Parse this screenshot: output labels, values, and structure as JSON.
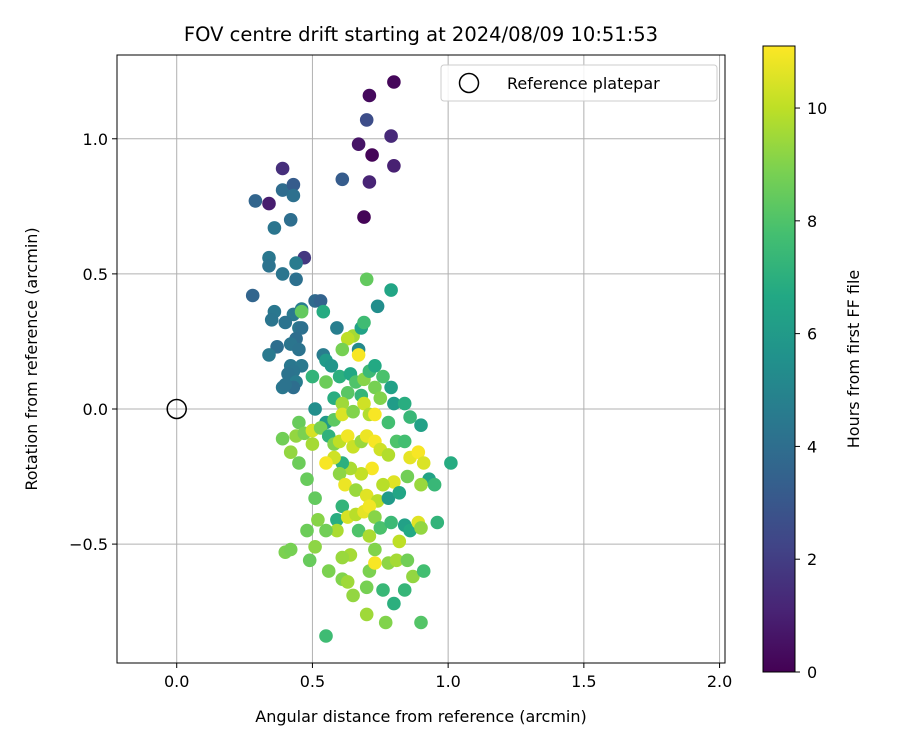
{
  "chart_data": {
    "type": "scatter",
    "title": "FOV centre drift starting at 2024/08/09 10:51:53",
    "xlabel": "Angular distance from reference (arcmin)",
    "ylabel": "Rotation from reference (arcmin)",
    "xlim": [
      -0.22,
      2.02
    ],
    "ylim": [
      -0.94,
      1.31
    ],
    "xticks": [
      0.0,
      0.5,
      1.0,
      1.5,
      2.0
    ],
    "xtick_labels": [
      "0.0",
      "0.5",
      "1.0",
      "1.5",
      "2.0"
    ],
    "yticks": [
      -0.5,
      0.0,
      0.5,
      1.0
    ],
    "ytick_labels": [
      "−0.5",
      "0.0",
      "0.5",
      "1.0"
    ],
    "grid": true,
    "legend": {
      "position": "top-right",
      "entries": [
        {
          "label": "Reference platepar",
          "marker": "open-circle"
        }
      ]
    },
    "reference_point": {
      "x": 0.0,
      "y": 0.0
    },
    "colorbar": {
      "label": "Hours from first FF file",
      "colormap": "viridis",
      "range": [
        0,
        11.1
      ],
      "ticks": [
        0,
        2,
        4,
        6,
        8,
        10
      ],
      "tick_labels": [
        "0",
        "2",
        "4",
        "6",
        "8",
        "10"
      ]
    },
    "point_columns": [
      "x",
      "y",
      "hours"
    ],
    "points": [
      [
        0.8,
        1.21,
        0.2
      ],
      [
        0.71,
        1.16,
        0.3
      ],
      [
        0.7,
        1.07,
        2.6
      ],
      [
        0.79,
        1.01,
        1.3
      ],
      [
        0.67,
        0.98,
        0.6
      ],
      [
        0.72,
        0.94,
        0.1
      ],
      [
        0.8,
        0.9,
        1.0
      ],
      [
        0.71,
        0.84,
        1.1
      ],
      [
        0.69,
        0.71,
        0.1
      ],
      [
        0.39,
        0.89,
        1.5
      ],
      [
        0.34,
        0.76,
        0.9
      ],
      [
        0.29,
        0.77,
        3.6
      ],
      [
        0.39,
        0.81,
        3.9
      ],
      [
        0.43,
        0.83,
        3.2
      ],
      [
        0.43,
        0.79,
        4.1
      ],
      [
        0.42,
        0.7,
        4.0
      ],
      [
        0.61,
        0.85,
        3.2
      ],
      [
        0.36,
        0.67,
        4.3
      ],
      [
        0.47,
        0.56,
        1.8
      ],
      [
        0.34,
        0.56,
        4.4
      ],
      [
        0.34,
        0.53,
        4.2
      ],
      [
        0.39,
        0.5,
        4.3
      ],
      [
        0.44,
        0.54,
        4.6
      ],
      [
        0.44,
        0.48,
        4.1
      ],
      [
        0.28,
        0.42,
        3.6
      ],
      [
        0.51,
        0.4,
        3.8
      ],
      [
        0.53,
        0.4,
        3.5
      ],
      [
        0.46,
        0.37,
        4.7
      ],
      [
        0.36,
        0.36,
        4.4
      ],
      [
        0.35,
        0.33,
        4.3
      ],
      [
        0.43,
        0.35,
        4.5
      ],
      [
        0.4,
        0.32,
        4.2
      ],
      [
        0.45,
        0.3,
        4.4
      ],
      [
        0.46,
        0.3,
        4.1
      ],
      [
        0.44,
        0.26,
        4.0
      ],
      [
        0.42,
        0.24,
        4.3
      ],
      [
        0.37,
        0.23,
        4.0
      ],
      [
        0.45,
        0.22,
        4.2
      ],
      [
        0.34,
        0.2,
        4.5
      ],
      [
        0.42,
        0.16,
        4.4
      ],
      [
        0.46,
        0.16,
        4.5
      ],
      [
        0.43,
        0.14,
        4.3
      ],
      [
        0.41,
        0.13,
        4.2
      ],
      [
        0.44,
        0.1,
        4.6
      ],
      [
        0.43,
        0.08,
        4.0
      ],
      [
        0.39,
        0.08,
        4.4
      ],
      [
        0.4,
        0.09,
        4.2
      ],
      [
        0.54,
        0.2,
        4.6
      ],
      [
        0.59,
        0.3,
        4.7
      ],
      [
        0.54,
        0.36,
        6.8
      ],
      [
        0.46,
        0.36,
        8.4
      ],
      [
        0.65,
        0.27,
        9.6
      ],
      [
        0.68,
        0.3,
        6.4
      ],
      [
        0.69,
        0.32,
        7.6
      ],
      [
        0.74,
        0.38,
        5.4
      ],
      [
        0.79,
        0.44,
        6.5
      ],
      [
        0.7,
        0.48,
        8.4
      ],
      [
        0.67,
        0.22,
        5.2
      ],
      [
        0.63,
        0.26,
        10.0
      ],
      [
        0.61,
        0.22,
        8.8
      ],
      [
        0.67,
        0.2,
        11.0
      ],
      [
        0.55,
        0.18,
        6.0
      ],
      [
        0.57,
        0.16,
        5.8
      ],
      [
        0.5,
        0.12,
        7.2
      ],
      [
        0.55,
        0.1,
        8.6
      ],
      [
        0.6,
        0.12,
        7.0
      ],
      [
        0.64,
        0.13,
        6.6
      ],
      [
        0.66,
        0.1,
        8.0
      ],
      [
        0.69,
        0.11,
        9.1
      ],
      [
        0.71,
        0.14,
        7.5
      ],
      [
        0.73,
        0.16,
        6.7
      ],
      [
        0.76,
        0.12,
        7.9
      ],
      [
        0.79,
        0.08,
        6.3
      ],
      [
        0.73,
        0.08,
        8.8
      ],
      [
        0.68,
        0.05,
        7.3
      ],
      [
        0.63,
        0.06,
        8.2
      ],
      [
        0.58,
        0.04,
        6.9
      ],
      [
        0.61,
        0.02,
        9.5
      ],
      [
        0.69,
        0.02,
        10.3
      ],
      [
        0.75,
        0.04,
        9.0
      ],
      [
        0.8,
        0.02,
        6.1
      ],
      [
        0.84,
        0.02,
        6.9
      ],
      [
        0.86,
        -0.03,
        7.4
      ],
      [
        0.9,
        -0.06,
        6.3
      ],
      [
        0.51,
        0.0,
        5.4
      ],
      [
        0.55,
        -0.05,
        6.0
      ],
      [
        0.58,
        -0.04,
        8.3
      ],
      [
        0.61,
        -0.02,
        10.5
      ],
      [
        0.65,
        -0.01,
        9.0
      ],
      [
        0.71,
        -0.02,
        9.8
      ],
      [
        0.73,
        -0.02,
        11.0
      ],
      [
        0.78,
        -0.05,
        7.7
      ],
      [
        0.45,
        -0.05,
        8.5
      ],
      [
        0.44,
        -0.1,
        9.3
      ],
      [
        0.47,
        -0.09,
        8.9
      ],
      [
        0.39,
        -0.11,
        8.7
      ],
      [
        0.42,
        -0.16,
        9.3
      ],
      [
        0.45,
        -0.2,
        8.6
      ],
      [
        0.5,
        -0.13,
        9.6
      ],
      [
        0.5,
        -0.08,
        10.4
      ],
      [
        0.53,
        -0.07,
        8.8
      ],
      [
        0.56,
        -0.1,
        7.1
      ],
      [
        0.58,
        -0.13,
        9.0
      ],
      [
        0.6,
        -0.12,
        10.0
      ],
      [
        0.63,
        -0.1,
        10.9
      ],
      [
        0.65,
        -0.14,
        10.2
      ],
      [
        0.68,
        -0.12,
        9.4
      ],
      [
        0.7,
        -0.1,
        10.8
      ],
      [
        0.73,
        -0.12,
        11.0
      ],
      [
        0.75,
        -0.15,
        10.3
      ],
      [
        0.78,
        -0.17,
        9.8
      ],
      [
        0.81,
        -0.12,
        8.0
      ],
      [
        0.84,
        -0.12,
        7.7
      ],
      [
        0.86,
        -0.18,
        10.7
      ],
      [
        0.89,
        -0.16,
        11.0
      ],
      [
        0.91,
        -0.2,
        10.5
      ],
      [
        0.93,
        -0.26,
        6.4
      ],
      [
        0.95,
        -0.28,
        7.4
      ],
      [
        1.01,
        -0.2,
        6.8
      ],
      [
        0.9,
        -0.28,
        9.4
      ],
      [
        0.85,
        -0.25,
        8.7
      ],
      [
        0.8,
        -0.27,
        10.6
      ],
      [
        0.76,
        -0.28,
        9.9
      ],
      [
        0.72,
        -0.22,
        11.0
      ],
      [
        0.68,
        -0.24,
        10.1
      ],
      [
        0.64,
        -0.22,
        9.7
      ],
      [
        0.61,
        -0.2,
        7.0
      ],
      [
        0.6,
        -0.24,
        9.2
      ],
      [
        0.58,
        -0.18,
        10.3
      ],
      [
        0.55,
        -0.2,
        11.0
      ],
      [
        0.62,
        -0.28,
        10.8
      ],
      [
        0.66,
        -0.3,
        9.4
      ],
      [
        0.7,
        -0.32,
        10.6
      ],
      [
        0.74,
        -0.34,
        9.9
      ],
      [
        0.78,
        -0.33,
        6.0
      ],
      [
        0.82,
        -0.31,
        6.5
      ],
      [
        0.48,
        -0.26,
        8.5
      ],
      [
        0.51,
        -0.33,
        8.4
      ],
      [
        0.52,
        -0.41,
        9.1
      ],
      [
        0.48,
        -0.45,
        8.6
      ],
      [
        0.59,
        -0.41,
        6.9
      ],
      [
        0.61,
        -0.36,
        7.2
      ],
      [
        0.63,
        -0.4,
        10.4
      ],
      [
        0.66,
        -0.39,
        9.9
      ],
      [
        0.69,
        -0.38,
        10.7
      ],
      [
        0.71,
        -0.36,
        10.9
      ],
      [
        0.73,
        -0.4,
        9.1
      ],
      [
        0.75,
        -0.44,
        7.9
      ],
      [
        0.67,
        -0.45,
        8.0
      ],
      [
        0.71,
        -0.47,
        9.7
      ],
      [
        0.79,
        -0.42,
        7.5
      ],
      [
        0.84,
        -0.43,
        6.3
      ],
      [
        0.86,
        -0.45,
        6.7
      ],
      [
        0.89,
        -0.42,
        10.6
      ],
      [
        0.9,
        -0.44,
        9.3
      ],
      [
        0.96,
        -0.42,
        7.2
      ],
      [
        0.59,
        -0.45,
        9.7
      ],
      [
        0.55,
        -0.45,
        8.7
      ],
      [
        0.82,
        -0.49,
        10.0
      ],
      [
        0.73,
        -0.52,
        9.0
      ],
      [
        0.64,
        -0.54,
        9.6
      ],
      [
        0.61,
        -0.55,
        9.4
      ],
      [
        0.51,
        -0.51,
        9.2
      ],
      [
        0.4,
        -0.53,
        8.9
      ],
      [
        0.42,
        -0.52,
        8.8
      ],
      [
        0.49,
        -0.56,
        8.5
      ],
      [
        0.56,
        -0.6,
        8.9
      ],
      [
        0.61,
        -0.63,
        9.0
      ],
      [
        0.63,
        -0.64,
        9.5
      ],
      [
        0.65,
        -0.69,
        9.3
      ],
      [
        0.71,
        -0.6,
        8.9
      ],
      [
        0.73,
        -0.57,
        11.0
      ],
      [
        0.78,
        -0.57,
        9.2
      ],
      [
        0.81,
        -0.56,
        9.6
      ],
      [
        0.85,
        -0.56,
        8.7
      ],
      [
        0.87,
        -0.62,
        9.3
      ],
      [
        0.7,
        -0.66,
        8.8
      ],
      [
        0.76,
        -0.67,
        7.4
      ],
      [
        0.84,
        -0.67,
        7.3
      ],
      [
        0.8,
        -0.72,
        7.0
      ],
      [
        0.91,
        -0.6,
        7.7
      ],
      [
        0.7,
        -0.76,
        9.5
      ],
      [
        0.77,
        -0.79,
        9.0
      ],
      [
        0.9,
        -0.79,
        8.1
      ],
      [
        0.55,
        -0.84,
        7.6
      ]
    ]
  }
}
